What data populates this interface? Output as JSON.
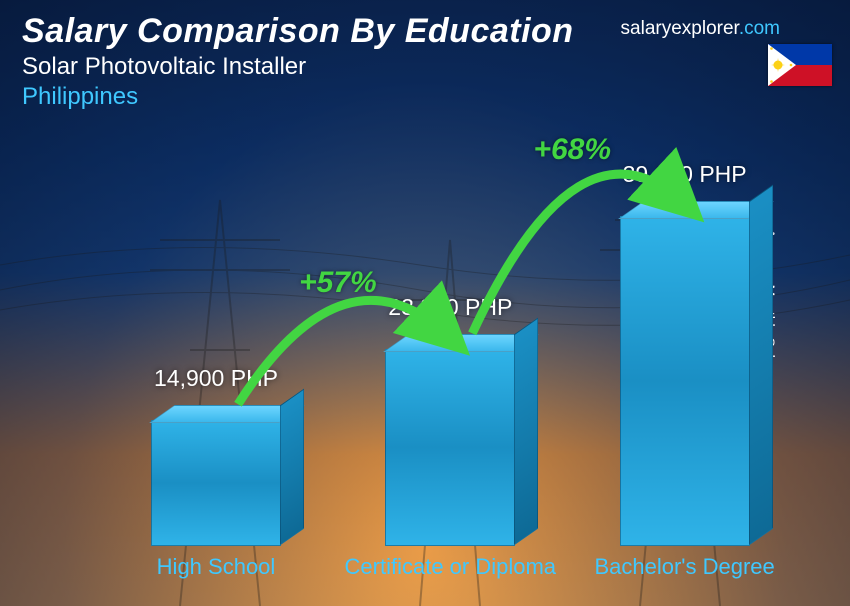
{
  "header": {
    "title": "Salary Comparison By Education",
    "subtitle": "Solar Photovoltaic Installer",
    "country": "Philippines"
  },
  "brand": {
    "name": "salaryexplorer",
    "domain": ".com"
  },
  "ylabel": "Average Monthly Salary",
  "chart": {
    "type": "bar",
    "bar_color": "#2fb3e8",
    "bar_top_color": "#6dd5ff",
    "bar_side_color": "#0e6a96",
    "value_color": "#ffffff",
    "label_color": "#3fc8ff",
    "arc_color": "#42d642",
    "max_value": 39100,
    "bars": [
      {
        "label": "High School",
        "value": 14900,
        "display": "14,900 PHP",
        "x_pct": 10
      },
      {
        "label": "Certificate or Diploma",
        "value": 23300,
        "display": "23,300 PHP",
        "x_pct": 43
      },
      {
        "label": "Bachelor's Degree",
        "value": 39100,
        "display": "39,100 PHP",
        "x_pct": 76
      }
    ],
    "arcs": [
      {
        "pct": "+57%",
        "from": 0,
        "to": 1
      },
      {
        "pct": "+68%",
        "from": 1,
        "to": 2
      }
    ]
  },
  "flag": {
    "blue": "#0038a8",
    "red": "#ce1126",
    "white": "#ffffff",
    "gold": "#fcd116"
  }
}
